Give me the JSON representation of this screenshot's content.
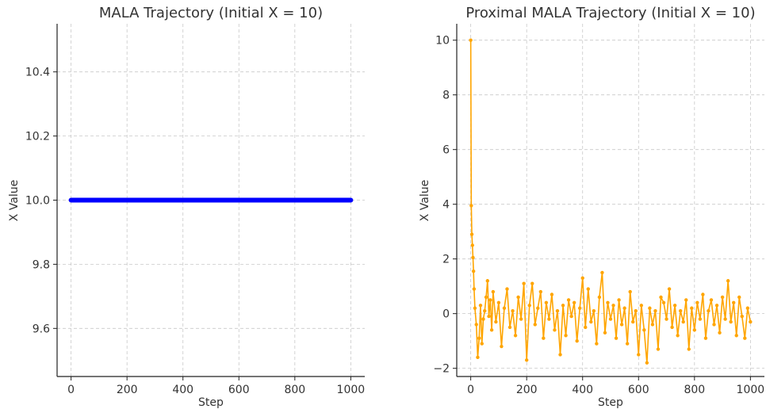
{
  "colors": {
    "mala": "#0000ff",
    "proximal": "#ffa500"
  },
  "chart_data": [
    {
      "type": "line",
      "title": "MALA Trajectory (Initial X = 10)",
      "xlabel": "Step",
      "ylabel": "X Value",
      "xlim": [
        -50,
        1050
      ],
      "ylim": [
        9.45,
        10.55
      ],
      "xticks": [
        0,
        200,
        400,
        600,
        800,
        1000
      ],
      "yticks": [
        9.6,
        9.8,
        10.0,
        10.2,
        10.4
      ],
      "ytick_labels": [
        "9.6",
        "9.8",
        "10.0",
        "10.2",
        "10.4"
      ],
      "grid": true,
      "series": [
        {
          "style": "line-with-markers",
          "color": "#0000ff",
          "x_start": 0,
          "x_end": 1000,
          "constant_value": 10.0
        }
      ]
    },
    {
      "type": "line",
      "title": "Proximal MALA Trajectory (Initial X = 10)",
      "xlabel": "Step",
      "ylabel": "X Value",
      "xlim": [
        -50,
        1050
      ],
      "ylim": [
        -2.3,
        10.6
      ],
      "xticks": [
        0,
        200,
        400,
        600,
        800,
        1000
      ],
      "yticks": [
        -2,
        0,
        2,
        4,
        6,
        8,
        10
      ],
      "ytick_labels": [
        "−2",
        "0",
        "2",
        "4",
        "6",
        "8",
        "10"
      ],
      "grid": true,
      "series": [
        {
          "style": "line-with-markers",
          "color": "#ffa500",
          "x_start": 0,
          "x_end": 1000,
          "x": [
            0,
            2,
            4,
            6,
            8,
            10,
            12,
            15,
            20,
            25,
            30,
            35,
            40,
            45,
            50,
            55,
            60,
            65,
            70,
            75,
            80,
            90,
            100,
            110,
            120,
            130,
            140,
            150,
            160,
            170,
            180,
            190,
            200,
            210,
            220,
            230,
            240,
            250,
            260,
            270,
            280,
            290,
            300,
            310,
            320,
            330,
            340,
            350,
            360,
            370,
            380,
            390,
            400,
            410,
            420,
            430,
            440,
            450,
            460,
            470,
            480,
            490,
            500,
            510,
            520,
            530,
            540,
            550,
            560,
            570,
            580,
            590,
            600,
            610,
            620,
            630,
            640,
            650,
            660,
            670,
            680,
            690,
            700,
            710,
            720,
            730,
            740,
            750,
            760,
            770,
            780,
            790,
            800,
            810,
            820,
            830,
            840,
            850,
            860,
            870,
            880,
            890,
            900,
            910,
            920,
            930,
            940,
            950,
            960,
            970,
            980,
            990,
            1000
          ],
          "y": [
            10.0,
            3.95,
            2.9,
            2.5,
            2.05,
            1.55,
            0.9,
            0.2,
            -0.4,
            -1.6,
            -0.9,
            0.3,
            -1.1,
            -0.2,
            0.1,
            0.6,
            1.2,
            -0.1,
            0.5,
            -0.6,
            0.8,
            -0.3,
            0.4,
            -1.2,
            0.2,
            0.9,
            -0.5,
            0.1,
            -0.8,
            0.6,
            -0.2,
            1.1,
            -1.7,
            0.3,
            1.1,
            -0.4,
            0.2,
            0.8,
            -0.9,
            0.4,
            -0.2,
            0.7,
            -0.6,
            0.1,
            -1.5,
            0.3,
            -0.8,
            0.5,
            -0.1,
            0.4,
            -1.0,
            0.2,
            1.3,
            -0.5,
            0.9,
            -0.3,
            0.1,
            -1.1,
            0.6,
            1.5,
            -0.7,
            0.4,
            -0.2,
            0.3,
            -0.9,
            0.5,
            -0.4,
            0.2,
            -1.1,
            0.8,
            -0.3,
            0.1,
            -1.5,
            0.3,
            -0.6,
            -1.8,
            0.2,
            -0.4,
            0.1,
            -1.3,
            0.6,
            0.4,
            -0.2,
            0.9,
            -0.5,
            0.3,
            -0.8,
            0.1,
            -0.3,
            0.5,
            -1.3,
            0.2,
            -0.6,
            0.4,
            -0.2,
            0.7,
            -0.9,
            0.1,
            0.5,
            -0.4,
            0.3,
            -0.7,
            0.6,
            -0.2,
            1.2,
            -0.3,
            0.4,
            -0.8,
            0.6,
            -0.1,
            -0.9,
            0.2,
            -0.3
          ]
        }
      ]
    }
  ]
}
